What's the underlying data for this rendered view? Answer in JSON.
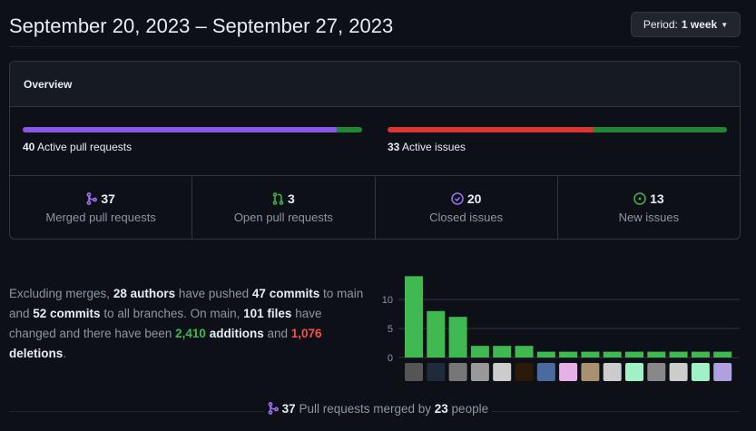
{
  "header": {
    "title": "September 20, 2023 – September 27, 2023",
    "period_label": "Period:",
    "period_value": "1 week"
  },
  "overview": {
    "title": "Overview",
    "pull_requests": {
      "count": "40",
      "label": "Active pull requests",
      "merged_fraction": 0.925,
      "colors": [
        "#8957e5",
        "#238636"
      ]
    },
    "issues": {
      "count": "33",
      "label": "Active issues",
      "closed_fraction": 0.606,
      "colors": [
        "#da3633",
        "#238636"
      ]
    },
    "stats": [
      {
        "icon": "git-merge-icon",
        "color": "#a371f7",
        "value": "37",
        "label": "Merged pull requests"
      },
      {
        "icon": "git-pull-request-icon",
        "color": "#3fb950",
        "value": "3",
        "label": "Open pull requests"
      },
      {
        "icon": "issue-closed-icon",
        "color": "#a371f7",
        "value": "20",
        "label": "Closed issues"
      },
      {
        "icon": "issue-opened-icon",
        "color": "#3fb950",
        "value": "13",
        "label": "New issues"
      }
    ]
  },
  "summary": {
    "t1": "Excluding merges, ",
    "authors": "28 authors",
    "t2": " have pushed ",
    "commits_main": "47 commits",
    "t3": " to main and ",
    "commits_all": "52 commits",
    "t4": " to all branches. On main, ",
    "files": "101 files",
    "t5": " have changed and there have been ",
    "additions": "2,410",
    "t6": " additions",
    "t7": " and ",
    "deletions": "1,076",
    "t8": " deletions",
    "t9": "."
  },
  "chart_data": {
    "type": "bar",
    "values": [
      14,
      8,
      7,
      2,
      2,
      2,
      1,
      1,
      1,
      1,
      1,
      1,
      1,
      1,
      1
    ],
    "yticks": [
      0,
      5,
      10
    ],
    "ylim": [
      0,
      14
    ],
    "bar_color": "#3fb950",
    "grid": true,
    "categories_are_avatars": true
  },
  "footer": {
    "merged": "37",
    "t1": " Pull requests merged by ",
    "people": "23",
    "t2": " people"
  }
}
